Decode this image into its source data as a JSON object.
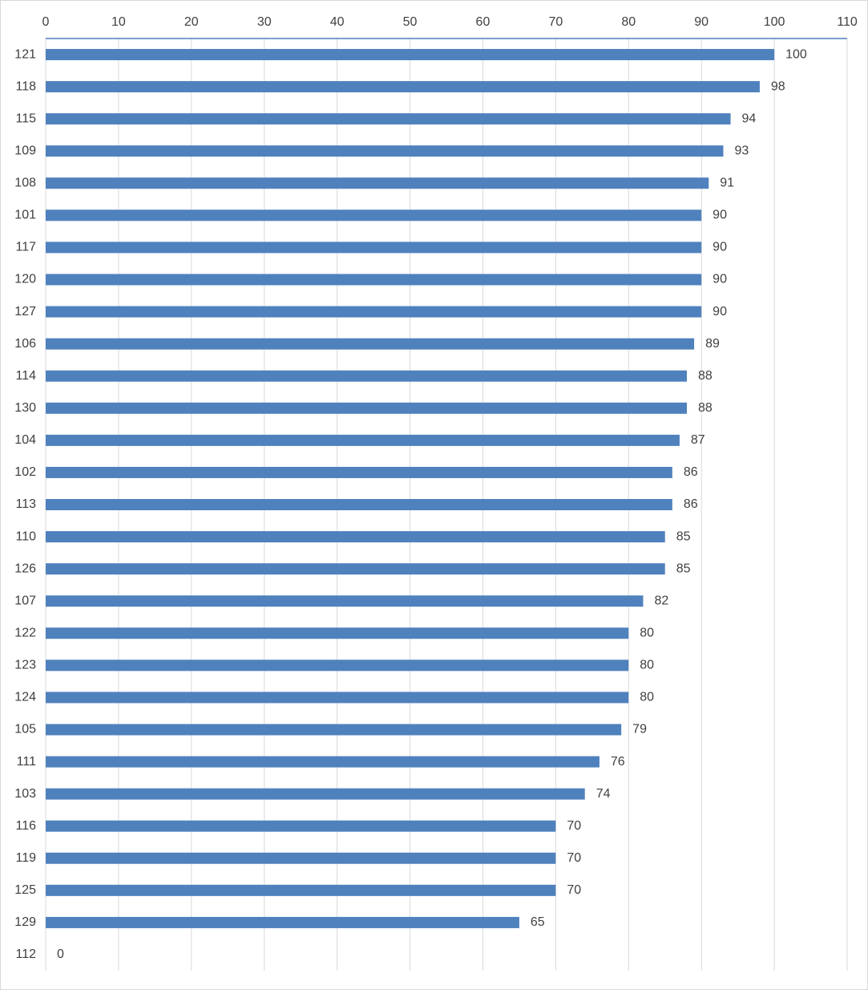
{
  "chart_data": {
    "type": "bar",
    "orientation": "horizontal",
    "categories": [
      "121",
      "118",
      "115",
      "109",
      "108",
      "101",
      "117",
      "120",
      "127",
      "106",
      "114",
      "130",
      "104",
      "102",
      "113",
      "110",
      "126",
      "107",
      "122",
      "123",
      "124",
      "105",
      "111",
      "103",
      "116",
      "119",
      "125",
      "129",
      "112"
    ],
    "values": [
      100,
      98,
      94,
      93,
      91,
      90,
      90,
      90,
      90,
      89,
      88,
      88,
      87,
      86,
      86,
      85,
      85,
      82,
      80,
      80,
      80,
      79,
      76,
      74,
      70,
      70,
      70,
      65,
      0
    ],
    "color": "#4f81bd",
    "xlim": [
      0,
      110
    ],
    "xticks": [
      0,
      10,
      20,
      30,
      40,
      50,
      60,
      70,
      80,
      90,
      100,
      110
    ],
    "grid": true
  }
}
